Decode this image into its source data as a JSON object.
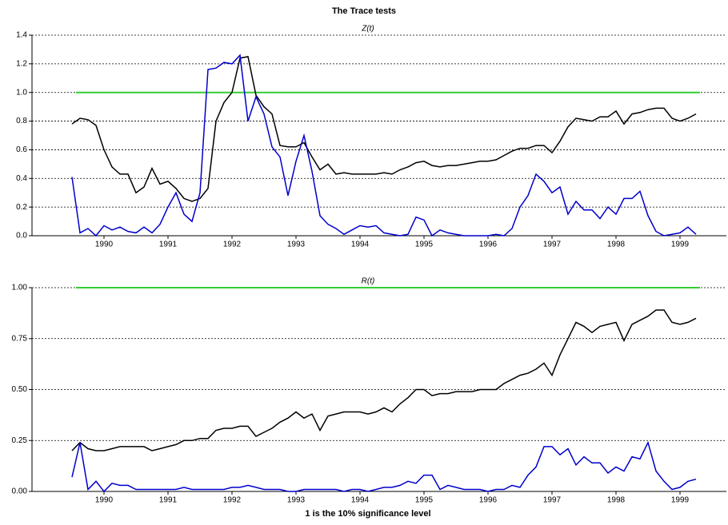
{
  "chart_data": [
    {
      "type": "line",
      "title": "The Trace tests",
      "subtitle": "Z(t)",
      "x": [
        1989.5,
        1989.625,
        1989.75,
        1989.875,
        1990,
        1990.125,
        1990.25,
        1990.375,
        1990.5,
        1990.625,
        1990.75,
        1990.875,
        1991,
        1991.125,
        1991.25,
        1991.375,
        1991.5,
        1991.625,
        1991.75,
        1991.875,
        1992,
        1992.125,
        1992.25,
        1992.375,
        1992.5,
        1992.625,
        1992.75,
        1992.875,
        1993,
        1993.125,
        1993.25,
        1993.375,
        1993.5,
        1993.625,
        1993.75,
        1993.875,
        1994,
        1994.125,
        1994.25,
        1994.375,
        1994.5,
        1994.625,
        1994.75,
        1994.875,
        1995,
        1995.125,
        1995.25,
        1995.375,
        1995.5,
        1995.625,
        1995.75,
        1995.875,
        1996,
        1996.125,
        1996.25,
        1996.375,
        1996.5,
        1996.625,
        1996.75,
        1996.875,
        1997,
        1997.125,
        1997.25,
        1997.375,
        1997.5,
        1997.625,
        1997.75,
        1997.875,
        1998,
        1998.125,
        1998.25,
        1998.375,
        1998.5,
        1998.625,
        1998.75,
        1998.875,
        1999,
        1999.125,
        1999.25
      ],
      "series": [
        {
          "color": "#000000",
          "values": [
            0.78,
            0.82,
            0.81,
            0.77,
            0.6,
            0.48,
            0.43,
            0.43,
            0.3,
            0.34,
            0.47,
            0.36,
            0.38,
            0.33,
            0.26,
            0.24,
            0.26,
            0.33,
            0.8,
            0.93,
            1.0,
            1.24,
            1.25,
            0.98,
            0.9,
            0.85,
            0.63,
            0.62,
            0.62,
            0.65,
            0.55,
            0.46,
            0.5,
            0.43,
            0.44,
            0.43,
            0.43,
            0.43,
            0.43,
            0.44,
            0.43,
            0.46,
            0.48,
            0.51,
            0.52,
            0.49,
            0.48,
            0.49,
            0.49,
            0.5,
            0.51,
            0.52,
            0.52,
            0.53,
            0.56,
            0.59,
            0.61,
            0.61,
            0.63,
            0.63,
            0.58,
            0.66,
            0.76,
            0.82,
            0.81,
            0.8,
            0.83,
            0.83,
            0.87,
            0.78,
            0.85,
            0.86,
            0.88,
            0.89,
            0.89,
            0.82,
            0.8,
            0.82,
            0.85
          ]
        },
        {
          "color": "#0000cc",
          "values": [
            0.41,
            0.02,
            0.05,
            0.0,
            0.07,
            0.04,
            0.06,
            0.03,
            0.02,
            0.06,
            0.02,
            0.08,
            0.2,
            0.3,
            0.15,
            0.1,
            0.3,
            1.16,
            1.17,
            1.21,
            1.2,
            1.26,
            0.8,
            0.97,
            0.85,
            0.62,
            0.55,
            0.28,
            0.52,
            0.7,
            0.45,
            0.14,
            0.08,
            0.05,
            0.01,
            0.04,
            0.07,
            0.06,
            0.07,
            0.02,
            0.01,
            0.0,
            0.01,
            0.13,
            0.11,
            0.0,
            0.04,
            0.02,
            0.01,
            0.0,
            0.0,
            0.0,
            0.0,
            0.01,
            0.0,
            0.05,
            0.2,
            0.28,
            0.43,
            0.38,
            0.3,
            0.34,
            0.15,
            0.24,
            0.18,
            0.18,
            0.12,
            0.2,
            0.15,
            0.26,
            0.26,
            0.31,
            0.14,
            0.03,
            0.0,
            0.01,
            0.02,
            0.06,
            0.01
          ]
        }
      ],
      "reference_line": 1,
      "reference_color": "#33cc33",
      "xlim": [
        1988.875,
        1999.725
      ],
      "xticks": [
        1990,
        1991,
        1992,
        1993,
        1994,
        1995,
        1996,
        1997,
        1998,
        1999
      ],
      "ylim": [
        0,
        1.4
      ],
      "yticks": [
        {
          "value": 0,
          "label": "0.0"
        },
        0.2,
        0.4,
        0.6,
        0.8,
        {
          "value": 1,
          "label": "1.0"
        },
        1.2,
        1.4
      ],
      "grid": true
    },
    {
      "type": "line",
      "subtitle": "R(t)",
      "xlabel": "1 is the 10% significance level",
      "x": [
        1989.5,
        1989.625,
        1989.75,
        1989.875,
        1990,
        1990.125,
        1990.25,
        1990.375,
        1990.5,
        1990.625,
        1990.75,
        1990.875,
        1991,
        1991.125,
        1991.25,
        1991.375,
        1991.5,
        1991.625,
        1991.75,
        1991.875,
        1992,
        1992.125,
        1992.25,
        1992.375,
        1992.5,
        1992.625,
        1992.75,
        1992.875,
        1993,
        1993.125,
        1993.25,
        1993.375,
        1993.5,
        1993.625,
        1993.75,
        1993.875,
        1994,
        1994.125,
        1994.25,
        1994.375,
        1994.5,
        1994.625,
        1994.75,
        1994.875,
        1995,
        1995.125,
        1995.25,
        1995.375,
        1995.5,
        1995.625,
        1995.75,
        1995.875,
        1996,
        1996.125,
        1996.25,
        1996.375,
        1996.5,
        1996.625,
        1996.75,
        1996.875,
        1997,
        1997.125,
        1997.25,
        1997.375,
        1997.5,
        1997.625,
        1997.75,
        1997.875,
        1998,
        1998.125,
        1998.25,
        1998.375,
        1998.5,
        1998.625,
        1998.75,
        1998.875,
        1999,
        1999.125,
        1999.25
      ],
      "series": [
        {
          "color": "#000000",
          "values": [
            0.2,
            0.24,
            0.21,
            0.2,
            0.2,
            0.21,
            0.22,
            0.22,
            0.22,
            0.22,
            0.2,
            0.21,
            0.22,
            0.23,
            0.25,
            0.25,
            0.26,
            0.26,
            0.3,
            0.31,
            0.31,
            0.32,
            0.32,
            0.27,
            0.29,
            0.31,
            0.34,
            0.36,
            0.39,
            0.36,
            0.38,
            0.3,
            0.37,
            0.38,
            0.39,
            0.39,
            0.39,
            0.38,
            0.39,
            0.41,
            0.39,
            0.43,
            0.46,
            0.5,
            0.5,
            0.47,
            0.48,
            0.48,
            0.49,
            0.49,
            0.49,
            0.5,
            0.5,
            0.5,
            0.53,
            0.55,
            0.57,
            0.58,
            0.6,
            0.63,
            0.57,
            0.67,
            0.75,
            0.83,
            0.81,
            0.78,
            0.81,
            0.82,
            0.83,
            0.74,
            0.82,
            0.84,
            0.86,
            0.89,
            0.89,
            0.83,
            0.82,
            0.83,
            0.85
          ]
        },
        {
          "color": "#0000cc",
          "values": [
            0.07,
            0.24,
            0.01,
            0.05,
            0.0,
            0.04,
            0.03,
            0.03,
            0.01,
            0.01,
            0.01,
            0.01,
            0.01,
            0.01,
            0.02,
            0.01,
            0.01,
            0.01,
            0.01,
            0.01,
            0.02,
            0.02,
            0.03,
            0.02,
            0.01,
            0.01,
            0.01,
            0.0,
            0.0,
            0.01,
            0.01,
            0.01,
            0.01,
            0.01,
            0.0,
            0.01,
            0.01,
            0.0,
            0.01,
            0.02,
            0.02,
            0.03,
            0.05,
            0.04,
            0.08,
            0.08,
            0.01,
            0.03,
            0.02,
            0.01,
            0.01,
            0.01,
            0.0,
            0.01,
            0.01,
            0.03,
            0.02,
            0.08,
            0.12,
            0.22,
            0.22,
            0.18,
            0.21,
            0.13,
            0.17,
            0.14,
            0.14,
            0.09,
            0.12,
            0.1,
            0.17,
            0.16,
            0.24,
            0.1,
            0.05,
            0.01,
            0.02,
            0.05,
            0.06
          ]
        }
      ],
      "reference_line": 1,
      "reference_color": "#33cc33",
      "xlim": [
        1988.875,
        1999.725
      ],
      "xticks": [
        1990,
        1991,
        1992,
        1993,
        1994,
        1995,
        1996,
        1997,
        1998,
        1999
      ],
      "ylim": [
        0,
        1
      ],
      "yticks": [
        {
          "value": 0,
          "label": "0.00"
        },
        0.25,
        {
          "value": 0.5,
          "label": "0.50"
        },
        0.75,
        {
          "value": 1,
          "label": "1.00"
        }
      ],
      "grid": true
    }
  ]
}
